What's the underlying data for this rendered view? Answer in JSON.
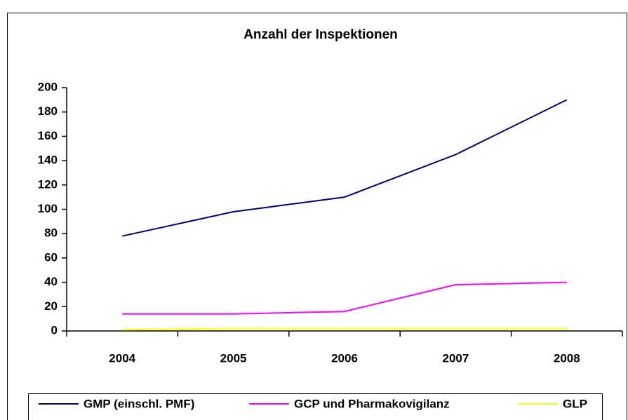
{
  "chart_data": {
    "type": "line",
    "title": "Anzahl der Inspektionen",
    "categories": [
      "2004",
      "2005",
      "2006",
      "2007",
      "2008"
    ],
    "series": [
      {
        "name": "GMP (einschl. PMF)",
        "color": "#000080",
        "values": [
          78,
          98,
          110,
          145,
          190
        ]
      },
      {
        "name": "GCP und Pharmakovigilanz",
        "color": "#ff00ff",
        "values": [
          14,
          14,
          16,
          38,
          40
        ]
      },
      {
        "name": "GLP",
        "color": "#ffff00",
        "values": [
          1,
          2,
          2,
          2,
          2
        ]
      }
    ],
    "ylim": [
      0,
      200
    ],
    "yticks": [
      0,
      20,
      40,
      60,
      80,
      100,
      120,
      140,
      160,
      180,
      200
    ],
    "grid": false,
    "legend": "bottom"
  }
}
